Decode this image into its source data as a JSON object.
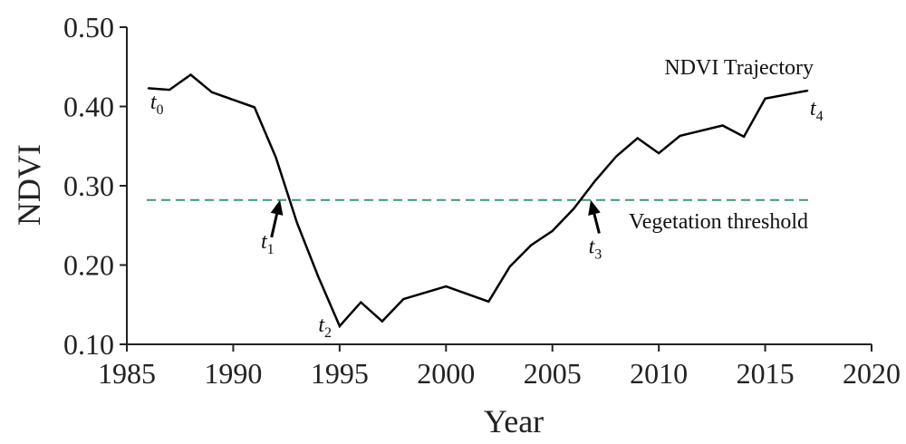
{
  "chart_data": {
    "type": "line",
    "xlabel": "Year",
    "ylabel": "NDVI",
    "xlim": [
      1985,
      2020
    ],
    "ylim": [
      0.1,
      0.5
    ],
    "x_ticks": [
      "1985",
      "1990",
      "1995",
      "2000",
      "2005",
      "2010",
      "2015",
      "2020"
    ],
    "y_ticks": [
      "0.10",
      "0.20",
      "0.30",
      "0.40",
      "0.50"
    ],
    "grid": false,
    "series": [
      {
        "name": "NDVI Trajectory",
        "color": "#000000",
        "points": [
          [
            1986,
            0.423
          ],
          [
            1987,
            0.421
          ],
          [
            1988,
            0.44
          ],
          [
            1989,
            0.418
          ],
          [
            1991,
            0.399
          ],
          [
            1992,
            0.336
          ],
          [
            1993,
            0.253
          ],
          [
            1994,
            0.185
          ],
          [
            1995,
            0.123
          ],
          [
            1996,
            0.153
          ],
          [
            1997,
            0.129
          ],
          [
            1998,
            0.157
          ],
          [
            2000,
            0.173
          ],
          [
            2002,
            0.154
          ],
          [
            2003,
            0.198
          ],
          [
            2004,
            0.225
          ],
          [
            2005,
            0.243
          ],
          [
            2006,
            0.271
          ],
          [
            2007,
            0.306
          ],
          [
            2008,
            0.337
          ],
          [
            2009,
            0.36
          ],
          [
            2010,
            0.341
          ],
          [
            2011,
            0.363
          ],
          [
            2013,
            0.376
          ],
          [
            2014,
            0.362
          ],
          [
            2015,
            0.41
          ],
          [
            2017,
            0.42
          ]
        ]
      }
    ],
    "threshold": {
      "label": "Vegetation threshold",
      "value": 0.282,
      "color": "#3a9a6e",
      "style": "dashed"
    },
    "annotations": [
      {
        "base": "t",
        "sub": "0",
        "x": 1986.1,
        "y": 0.397
      },
      {
        "base": "t",
        "sub": "1",
        "x": 1991.3,
        "y": 0.221
      },
      {
        "base": "t",
        "sub": "2",
        "x": 1994.0,
        "y": 0.116
      },
      {
        "base": "t",
        "sub": "3",
        "x": 2006.7,
        "y": 0.215
      },
      {
        "base": "t",
        "sub": "4",
        "x": 2017.1,
        "y": 0.389
      }
    ],
    "arrows": [
      {
        "from": [
          1991.8,
          0.235
        ],
        "to": [
          1992.2,
          0.282
        ]
      },
      {
        "from": [
          2007.2,
          0.24
        ],
        "to": [
          2006.8,
          0.282
        ]
      }
    ]
  }
}
